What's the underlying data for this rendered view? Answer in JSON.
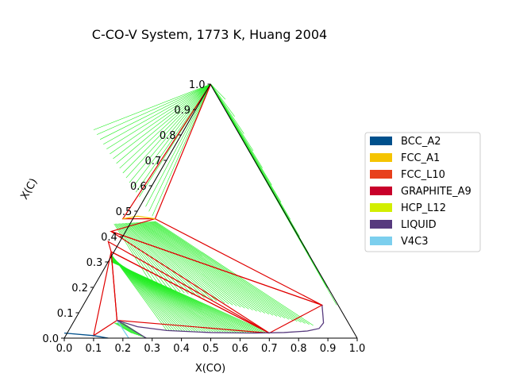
{
  "chart_data": {
    "type": "ternary",
    "title": "C-CO-V System, 1773 K, Huang 2004",
    "xlabel": "X(CO)",
    "ylabel": "X(C)",
    "xlim": [
      0,
      1
    ],
    "ylim": [
      0,
      1
    ],
    "x_ticks": [
      "0.0",
      "0.1",
      "0.2",
      "0.3",
      "0.4",
      "0.5",
      "0.6",
      "0.7",
      "0.8",
      "0.9",
      "1.0"
    ],
    "y_ticks": [
      "0.0",
      "0.1",
      "0.2",
      "0.3",
      "0.4",
      "0.5",
      "0.6",
      "0.7",
      "0.8",
      "0.9",
      "1.0"
    ],
    "legend_position": "right",
    "legend": [
      {
        "name": "BCC_A2",
        "color": "#00508c"
      },
      {
        "name": "FCC_A1",
        "color": "#f5c400"
      },
      {
        "name": "FCC_L10",
        "color": "#e8401c"
      },
      {
        "name": "GRAPHITE_A9",
        "color": "#c8002a"
      },
      {
        "name": "HCP_L12",
        "color": "#d2ee00"
      },
      {
        "name": "LIQUID",
        "color": "#573a7e"
      },
      {
        "name": "V4C3",
        "color": "#7ccfee"
      }
    ],
    "phase_boundaries": [
      {
        "phase": "LIQUID",
        "points": [
          [
            0.18,
            0.07
          ],
          [
            0.25,
            0.045
          ],
          [
            0.35,
            0.03
          ],
          [
            0.5,
            0.022
          ],
          [
            0.65,
            0.02
          ],
          [
            0.75,
            0.022
          ],
          [
            0.83,
            0.028
          ],
          [
            0.87,
            0.038
          ],
          [
            0.885,
            0.06
          ],
          [
            0.883,
            0.09
          ],
          [
            0.88,
            0.13
          ]
        ]
      },
      {
        "phase": "BCC_A2",
        "points": [
          [
            0.0,
            0.02
          ],
          [
            0.1,
            0.01
          ],
          [
            0.15,
            0.0
          ]
        ]
      },
      {
        "phase": "V4C3",
        "points": [
          [
            0.18,
            0.07
          ],
          [
            0.22,
            0.0
          ]
        ]
      },
      {
        "phase": "LIQUID",
        "points": [
          [
            0.18,
            0.07
          ],
          [
            0.28,
            0.0
          ]
        ]
      },
      {
        "phase": "FCC_A1",
        "points": [
          [
            0.2,
            0.47
          ],
          [
            0.25,
            0.48
          ],
          [
            0.31,
            0.47
          ]
        ]
      }
    ],
    "three_phase_triangles": [
      {
        "points": [
          [
            0.5,
            1.0
          ],
          [
            0.2,
            0.47
          ],
          [
            0.31,
            0.47
          ]
        ]
      },
      {
        "points": [
          [
            0.16,
            0.42
          ],
          [
            0.31,
            0.47
          ],
          [
            0.88,
            0.13
          ]
        ]
      },
      {
        "points": [
          [
            0.16,
            0.42
          ],
          [
            0.88,
            0.13
          ],
          [
            0.7,
            0.02
          ]
        ]
      },
      {
        "points": [
          [
            0.15,
            0.38
          ],
          [
            0.7,
            0.02
          ],
          [
            0.16,
            0.34
          ]
        ]
      },
      {
        "points": [
          [
            0.16,
            0.34
          ],
          [
            0.1,
            0.01
          ],
          [
            0.18,
            0.07
          ]
        ]
      },
      {
        "points": [
          [
            0.16,
            0.34
          ],
          [
            0.18,
            0.07
          ],
          [
            0.7,
            0.02
          ]
        ]
      }
    ],
    "tie_line_regions": [
      {
        "from": [
          [
            0.5,
            1.0
          ],
          [
            0.5,
            1.0
          ]
        ],
        "to": [
          [
            0.1,
            0.82
          ],
          [
            0.3,
            0.48
          ]
        ],
        "count": 18
      },
      {
        "from": [
          [
            0.5,
            1.0
          ],
          [
            0.5,
            1.0
          ]
        ],
        "to": [
          [
            0.55,
            0.94
          ],
          [
            0.93,
            0.13
          ]
        ],
        "count": 12
      },
      {
        "from": [
          [
            0.17,
            0.45
          ],
          [
            0.31,
            0.46
          ]
        ],
        "to": [
          [
            0.3,
            0.21
          ],
          [
            0.85,
            0.05
          ]
        ],
        "count": 40
      },
      {
        "from": [
          [
            0.16,
            0.33
          ],
          [
            0.16,
            0.3
          ]
        ],
        "to": [
          [
            0.35,
            0.03
          ],
          [
            0.7,
            0.02
          ]
        ],
        "count": 40
      },
      {
        "from": [
          [
            0.17,
            0.06
          ],
          [
            0.2,
            0.06
          ]
        ],
        "to": [
          [
            0.23,
            0.02
          ],
          [
            0.28,
            0.0
          ]
        ],
        "count": 8
      }
    ]
  }
}
